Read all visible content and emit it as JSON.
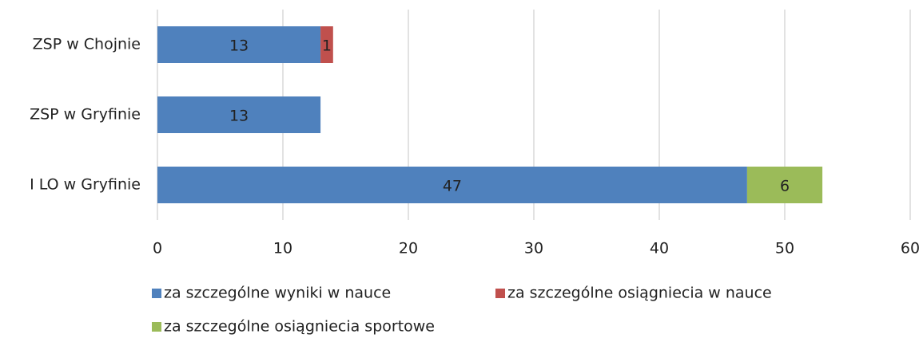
{
  "chart_data": {
    "type": "stacked_barh",
    "categories": [
      "ZSP w Chojnie",
      "ZSP w Gryfinie",
      "I LO w Gryfinie"
    ],
    "series": [
      {
        "name": "za szczególne wyniki w nauce",
        "color": "#4f81bd",
        "values": [
          13,
          13,
          47
        ]
      },
      {
        "name": "za szczególne osiągniecia w nauce",
        "color": "#c0504d",
        "values": [
          1,
          null,
          null
        ]
      },
      {
        "name": "za szczególne osiągniecia sportowe",
        "color": "#9bbb59",
        "values": [
          null,
          null,
          6
        ]
      }
    ],
    "xlim": [
      0,
      60
    ],
    "xticks": [
      0,
      10,
      20,
      30,
      40,
      50,
      60
    ],
    "grid": true,
    "legend": "bottom"
  }
}
